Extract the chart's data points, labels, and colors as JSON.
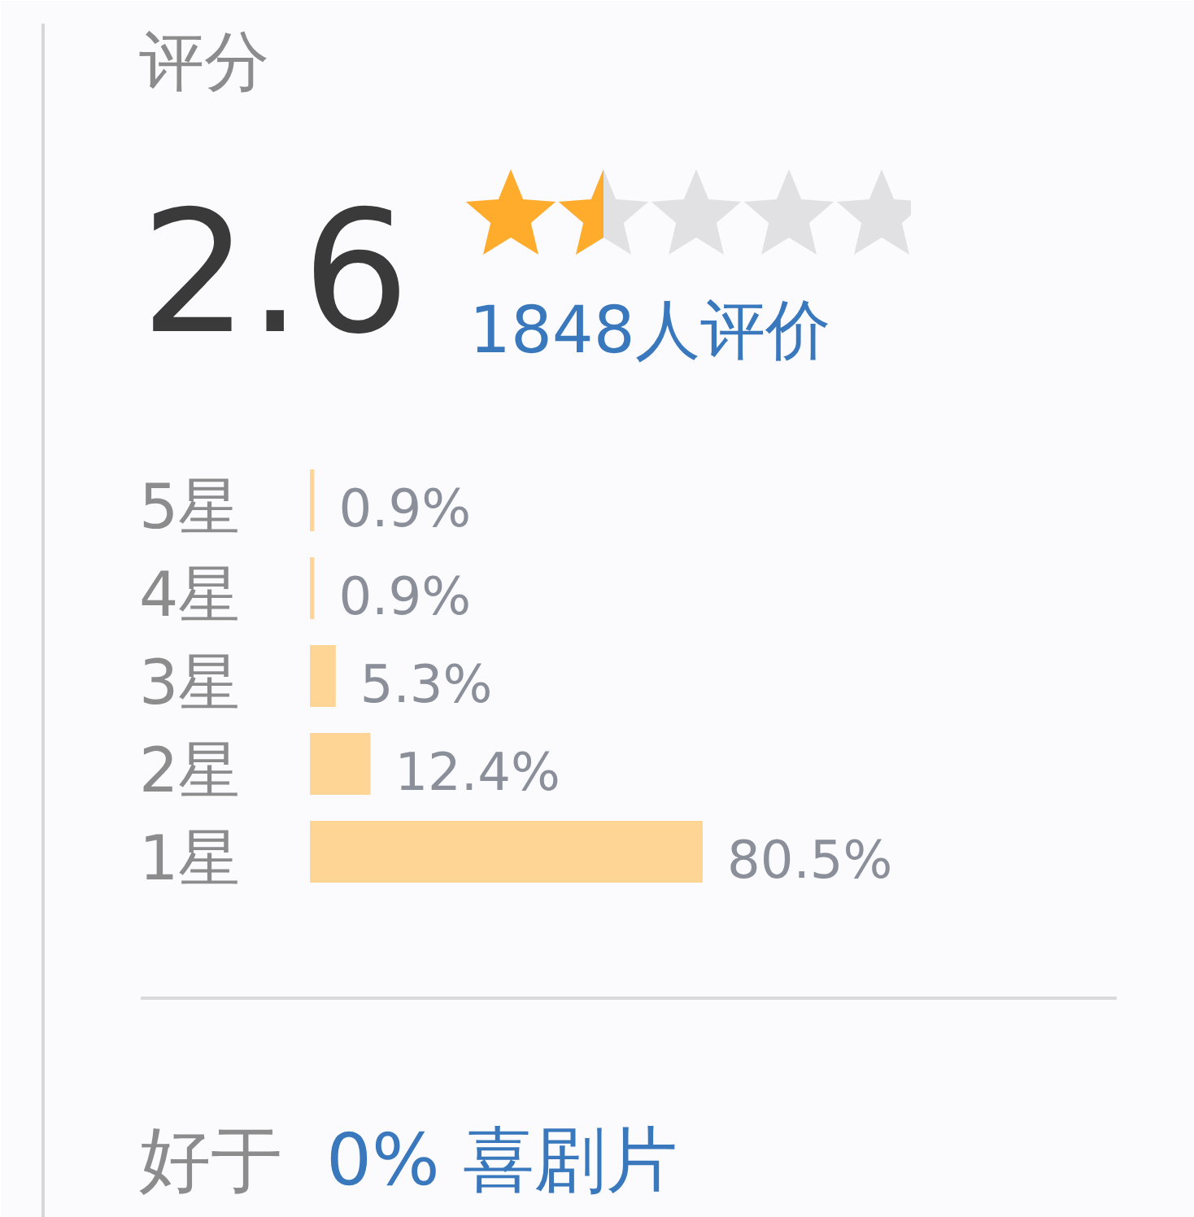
{
  "chart_data": {
    "type": "bar",
    "orientation": "horizontal",
    "title": "评分",
    "categories": [
      "5星",
      "4星",
      "3星",
      "2星",
      "1星"
    ],
    "values": [
      0.9,
      0.9,
      5.3,
      12.4,
      80.5
    ],
    "value_labels": [
      "0.9%",
      "0.9%",
      "5.3%",
      "12.4%",
      "80.5%"
    ],
    "color": "#ffd596",
    "annotations": [
      "2.6",
      "1848人评价",
      "好于",
      "0% 喜剧片"
    ]
  }
}
